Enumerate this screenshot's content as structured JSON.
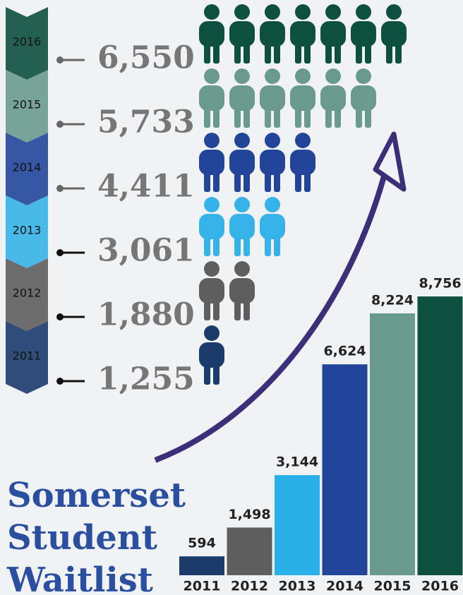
{
  "chart_data": [
    {
      "type": "pictogram",
      "categories": [
        "2016",
        "2015",
        "2014",
        "2013",
        "2012",
        "2011"
      ],
      "values": [
        6550,
        5733,
        4411,
        3061,
        1880,
        1255
      ],
      "value_labels": [
        "6,550",
        "5,733",
        "4,411",
        "3,061",
        "1,880",
        "1,255"
      ],
      "colors": [
        "#0d5040",
        "#6a9a8e",
        "#22459a",
        "#35b2e8",
        "#5e5e5e",
        "#1b3b6b"
      ]
    },
    {
      "type": "bar",
      "title": "Somerset Student Waitlist",
      "categories": [
        "2011",
        "2012",
        "2013",
        "2014",
        "2015",
        "2016"
      ],
      "values": [
        594,
        1498,
        3144,
        6624,
        8224,
        8756
      ],
      "value_labels": [
        "594",
        "1,498",
        "3,144",
        "6,624",
        "8,224",
        "8,756"
      ],
      "colors": [
        "#1b3b6b",
        "#5e5e5e",
        "#2ab0e8",
        "#22459a",
        "#6a9a8e",
        "#0d5040"
      ],
      "ylim": [
        0,
        9000
      ]
    }
  ]
}
